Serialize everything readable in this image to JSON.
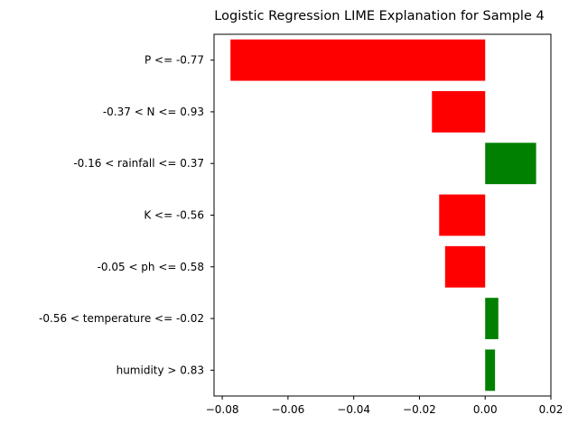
{
  "chart_data": {
    "type": "bar",
    "orientation": "horizontal",
    "title": "Logistic Regression LIME Explanation for Sample 4",
    "xlabel": "",
    "ylabel": "",
    "categories": [
      "P <= -0.77",
      "-0.37 < N <= 0.93",
      "-0.16 < rainfall <= 0.37",
      "K <= -0.56",
      "-0.05 < ph <= 0.58",
      "-0.56 < temperature <= -0.02",
      "humidity > 0.83"
    ],
    "values": [
      -0.0775,
      -0.0162,
      0.0155,
      -0.014,
      -0.0122,
      0.004,
      0.003
    ],
    "xlim": [
      -0.0825,
      0.02
    ],
    "xticks": [
      -0.08,
      -0.06,
      -0.04,
      -0.02,
      0.0,
      0.02
    ],
    "xtick_labels": [
      "−0.08",
      "−0.06",
      "−0.04",
      "−0.02",
      "0.00",
      "0.02"
    ],
    "colors": {
      "positive": "#008000",
      "negative": "#ff0000"
    },
    "grid": false,
    "legend": "none"
  }
}
